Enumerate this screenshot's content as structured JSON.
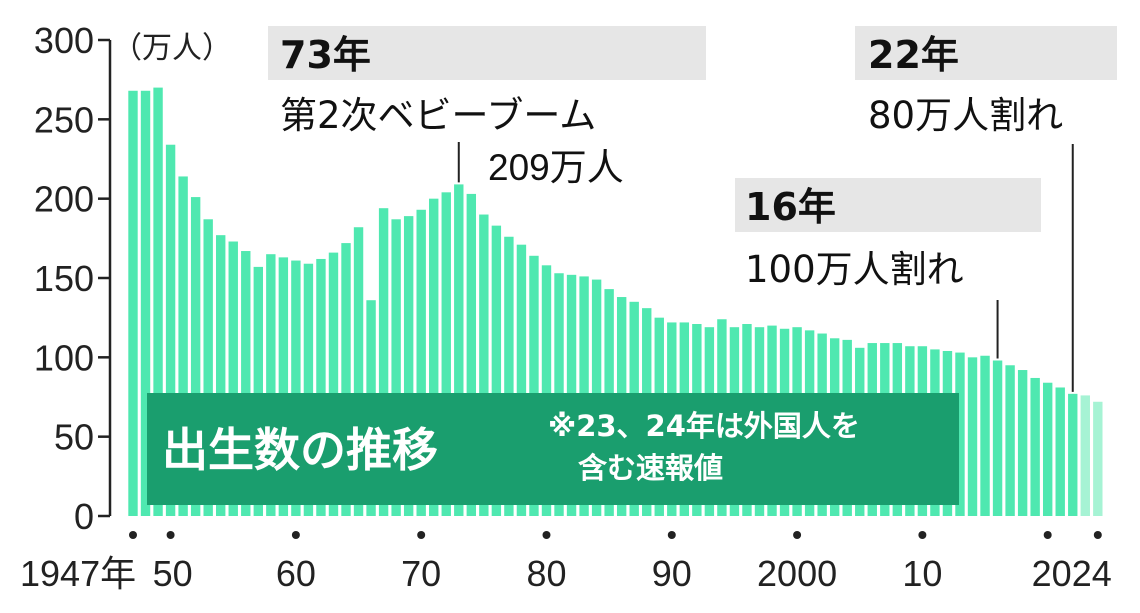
{
  "chart_data": {
    "type": "bar",
    "title": "出生数の推移",
    "note": [
      "※23、24年は外国人を",
      "含む速報値"
    ],
    "ylabel": "（万人）",
    "ylim": [
      0,
      300
    ],
    "yticks": [
      "0",
      "50",
      "100",
      "150",
      "200",
      "250",
      "300"
    ],
    "x_start_year": 1947,
    "x_tick_labels": [
      {
        "year": 1947,
        "label": "1947年"
      },
      {
        "year": 1950,
        "label": "50"
      },
      {
        "year": 1960,
        "label": "60"
      },
      {
        "year": 1970,
        "label": "70"
      },
      {
        "year": 1980,
        "label": "80"
      },
      {
        "year": 1990,
        "label": "90"
      },
      {
        "year": 2000,
        "label": "2000"
      },
      {
        "year": 2010,
        "label": "10"
      },
      {
        "year": 2020,
        "label": "20"
      },
      {
        "year": 2024,
        "label": "24"
      }
    ],
    "x_tick_dots": [
      1947,
      1950,
      1960,
      1970,
      1980,
      1990,
      2000,
      2010,
      2020,
      2024
    ],
    "years": [
      1947,
      1948,
      1949,
      1950,
      1951,
      1952,
      1953,
      1954,
      1955,
      1956,
      1957,
      1958,
      1959,
      1960,
      1961,
      1962,
      1963,
      1964,
      1965,
      1966,
      1967,
      1968,
      1969,
      1970,
      1971,
      1972,
      1973,
      1974,
      1975,
      1976,
      1977,
      1978,
      1979,
      1980,
      1981,
      1982,
      1983,
      1984,
      1985,
      1986,
      1987,
      1988,
      1989,
      1990,
      1991,
      1992,
      1993,
      1994,
      1995,
      1996,
      1997,
      1998,
      1999,
      2000,
      2001,
      2002,
      2003,
      2004,
      2005,
      2006,
      2007,
      2008,
      2009,
      2010,
      2011,
      2012,
      2013,
      2014,
      2015,
      2016,
      2017,
      2018,
      2019,
      2020,
      2021,
      2022,
      2023,
      2024
    ],
    "values": [
      268,
      268,
      270,
      234,
      214,
      201,
      187,
      177,
      173,
      167,
      157,
      165,
      163,
      161,
      159,
      162,
      166,
      172,
      182,
      136,
      194,
      187,
      189,
      193,
      200,
      204,
      209,
      203,
      190,
      183,
      176,
      171,
      164,
      158,
      153,
      152,
      151,
      149,
      143,
      138,
      135,
      131,
      125,
      122,
      122,
      121,
      119,
      124,
      119,
      121,
      119,
      120,
      118,
      119,
      117,
      115,
      112,
      111,
      106,
      109,
      109,
      109,
      107,
      107,
      105,
      104,
      103,
      100,
      101,
      98,
      95,
      92,
      87,
      84,
      81,
      77,
      76,
      72
    ],
    "highlight_years": [
      2023,
      2024
    ],
    "annotations": [
      {
        "year": 1973,
        "head": "73年",
        "lines": [
          "第2次ベビーブーム",
          "209万人"
        ]
      },
      {
        "year": 2016,
        "head": "16年",
        "lines": [
          "100万人割れ"
        ]
      },
      {
        "year": 2022,
        "head": "22年",
        "lines": [
          "80万人割れ"
        ]
      }
    ],
    "colors": {
      "bar": "#4fe8b0",
      "bar_highlight": "#a6f3d4",
      "title_box": "#1a9e6e",
      "label_box": "#e6e6e6",
      "axis": "#222222"
    }
  }
}
